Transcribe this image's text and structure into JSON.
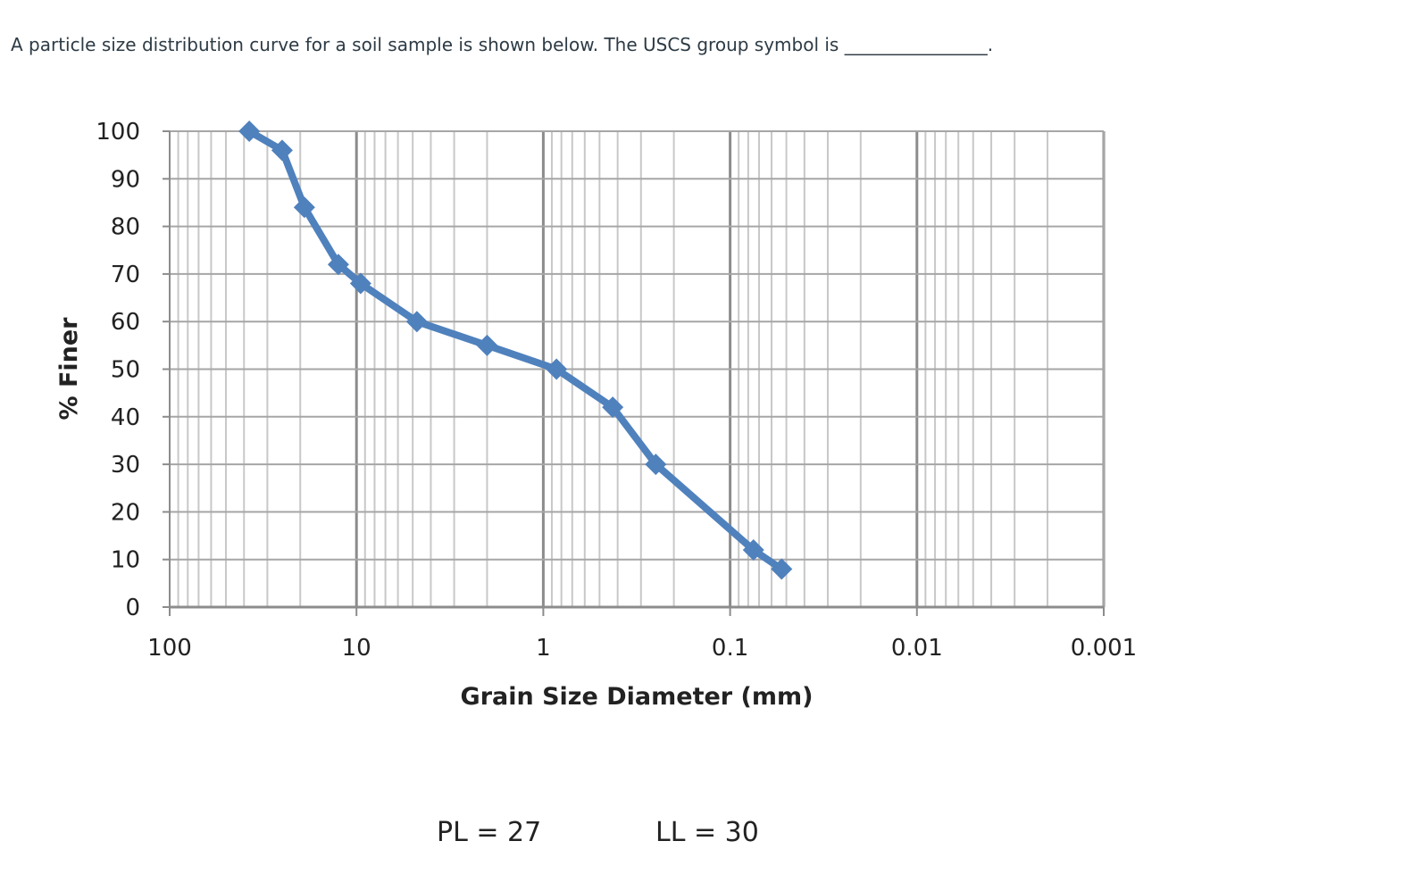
{
  "question": {
    "text": "A particle size distribution curve for a soil sample is shown below.  The USCS group symbol is ________________."
  },
  "chart_data": {
    "type": "line",
    "title": "",
    "xlabel": "Grain Size Diameter (mm)",
    "ylabel": "% Finer",
    "x_scale": "log",
    "x_reversed": true,
    "xlim": [
      100,
      0.001
    ],
    "ylim": [
      0,
      100
    ],
    "x_tick_labels": [
      "100",
      "10",
      "1",
      "0.1",
      "0.01",
      "0.001"
    ],
    "y_tick_labels": [
      "0",
      "10",
      "20",
      "30",
      "40",
      "50",
      "60",
      "70",
      "80",
      "90",
      "100"
    ],
    "grid": true,
    "series_color": "#4f81bd",
    "series": [
      {
        "x": [
          37.5,
          25,
          19,
          12.5,
          9.5,
          4.75,
          2,
          0.85,
          0.425,
          0.25,
          0.075,
          0.053
        ],
        "y": [
          100,
          96,
          84,
          72,
          68,
          60,
          55,
          50,
          42,
          30,
          12,
          8
        ]
      }
    ],
    "annotations": [
      "PL = 27",
      "LL = 30"
    ]
  }
}
